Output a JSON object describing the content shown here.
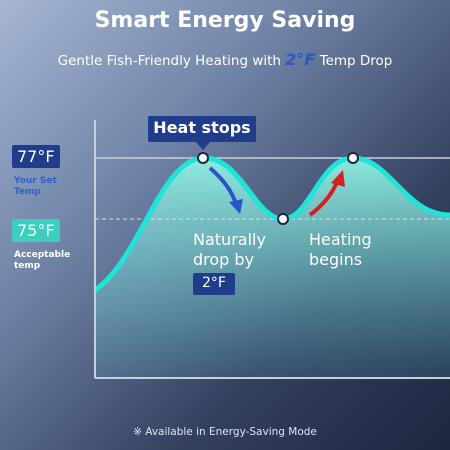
{
  "header": {
    "title": "Smart Energy Saving",
    "subtitle": {
      "before": "Gentle Fish-Friendly Heating with ",
      "highlight": "2°F",
      "after": " Temp Drop"
    }
  },
  "levels": [
    {
      "temp": "77°F",
      "label": "Your Set Temp"
    },
    {
      "temp": "75°F",
      "label": "Acceptable temp"
    }
  ],
  "callouts": {
    "heat_stops": "Heat stops",
    "drop": "Naturally drop by",
    "drop_amount": "2°F",
    "heating": "Heating begins"
  },
  "footer": "※ Available in Energy-Saving Mode"
}
